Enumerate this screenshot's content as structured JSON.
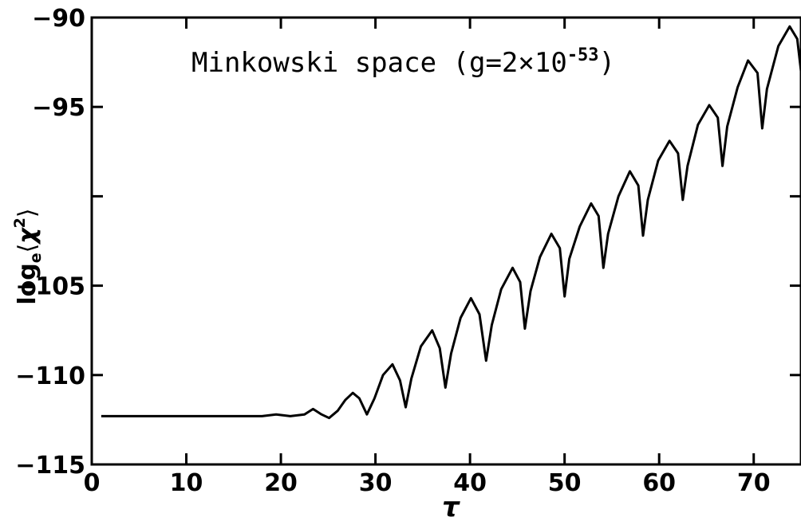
{
  "chart_data": {
    "type": "line",
    "title": "",
    "annotation": {
      "prefix": "Minkowski space  (g=2×10",
      "exponent": "-53",
      "suffix": ")"
    },
    "xlabel": "τ",
    "ylabel": {
      "main": "log",
      "subscript": "e",
      "bracket_open": "⟨",
      "symbol": "χ",
      "superscript": "2",
      "bracket_close": "⟩"
    },
    "xlim": [
      0,
      75
    ],
    "ylim": [
      -115,
      -90
    ],
    "xticks": [
      0,
      10,
      20,
      30,
      40,
      50,
      60,
      70
    ],
    "xtick_labels": [
      "0",
      "10",
      "20",
      "30",
      "40",
      "50",
      "60",
      "70"
    ],
    "yticks": [
      -115,
      -110,
      -105,
      -100,
      -95,
      -90
    ],
    "ytick_labels": [
      "−115",
      "−110",
      "−105",
      "",
      "−95",
      "−90"
    ],
    "grid": false,
    "legend": "none",
    "line_color": "#000000",
    "series": [
      {
        "x": [
          1.0,
          18.0,
          19.5,
          21.0,
          22.5,
          23.4,
          24.3,
          25.1,
          26.0,
          26.8,
          27.6,
          28.3,
          29.1,
          29.9,
          30.8,
          31.8,
          32.6,
          33.2,
          33.8,
          34.8,
          36.0,
          36.8,
          37.4,
          38.0,
          39.0,
          40.1,
          41.0,
          41.7,
          42.3,
          43.3,
          44.5,
          45.3,
          45.8,
          46.4,
          47.4,
          48.6,
          49.5,
          50.0,
          50.5,
          51.6,
          52.8,
          53.6,
          54.1,
          54.6,
          55.7,
          56.9,
          57.8,
          58.3,
          58.8,
          59.9,
          61.1,
          62.0,
          62.5,
          63.0,
          64.1,
          65.3,
          66.2,
          66.7,
          67.2,
          68.3,
          69.4,
          70.4,
          70.9,
          71.4,
          72.6,
          73.8,
          74.6,
          75.0
        ],
        "y": [
          -112.3,
          -112.3,
          -112.2,
          -112.3,
          -112.2,
          -111.9,
          -112.2,
          -112.4,
          -112.0,
          -111.4,
          -111.0,
          -111.3,
          -112.2,
          -111.3,
          -110.0,
          -109.4,
          -110.3,
          -111.8,
          -110.2,
          -108.4,
          -107.5,
          -108.5,
          -110.7,
          -108.8,
          -106.8,
          -105.7,
          -106.6,
          -109.2,
          -107.2,
          -105.2,
          -104.0,
          -104.8,
          -107.4,
          -105.3,
          -103.4,
          -102.1,
          -102.9,
          -105.6,
          -103.5,
          -101.7,
          -100.4,
          -101.1,
          -104.0,
          -102.1,
          -100.0,
          -98.6,
          -99.4,
          -102.2,
          -100.2,
          -98.0,
          -96.9,
          -97.6,
          -100.2,
          -98.3,
          -96.0,
          -94.9,
          -95.6,
          -98.3,
          -96.1,
          -93.9,
          -92.4,
          -93.1,
          -96.2,
          -94.0,
          -91.6,
          -90.5,
          -91.2,
          -93.0
        ]
      }
    ]
  }
}
